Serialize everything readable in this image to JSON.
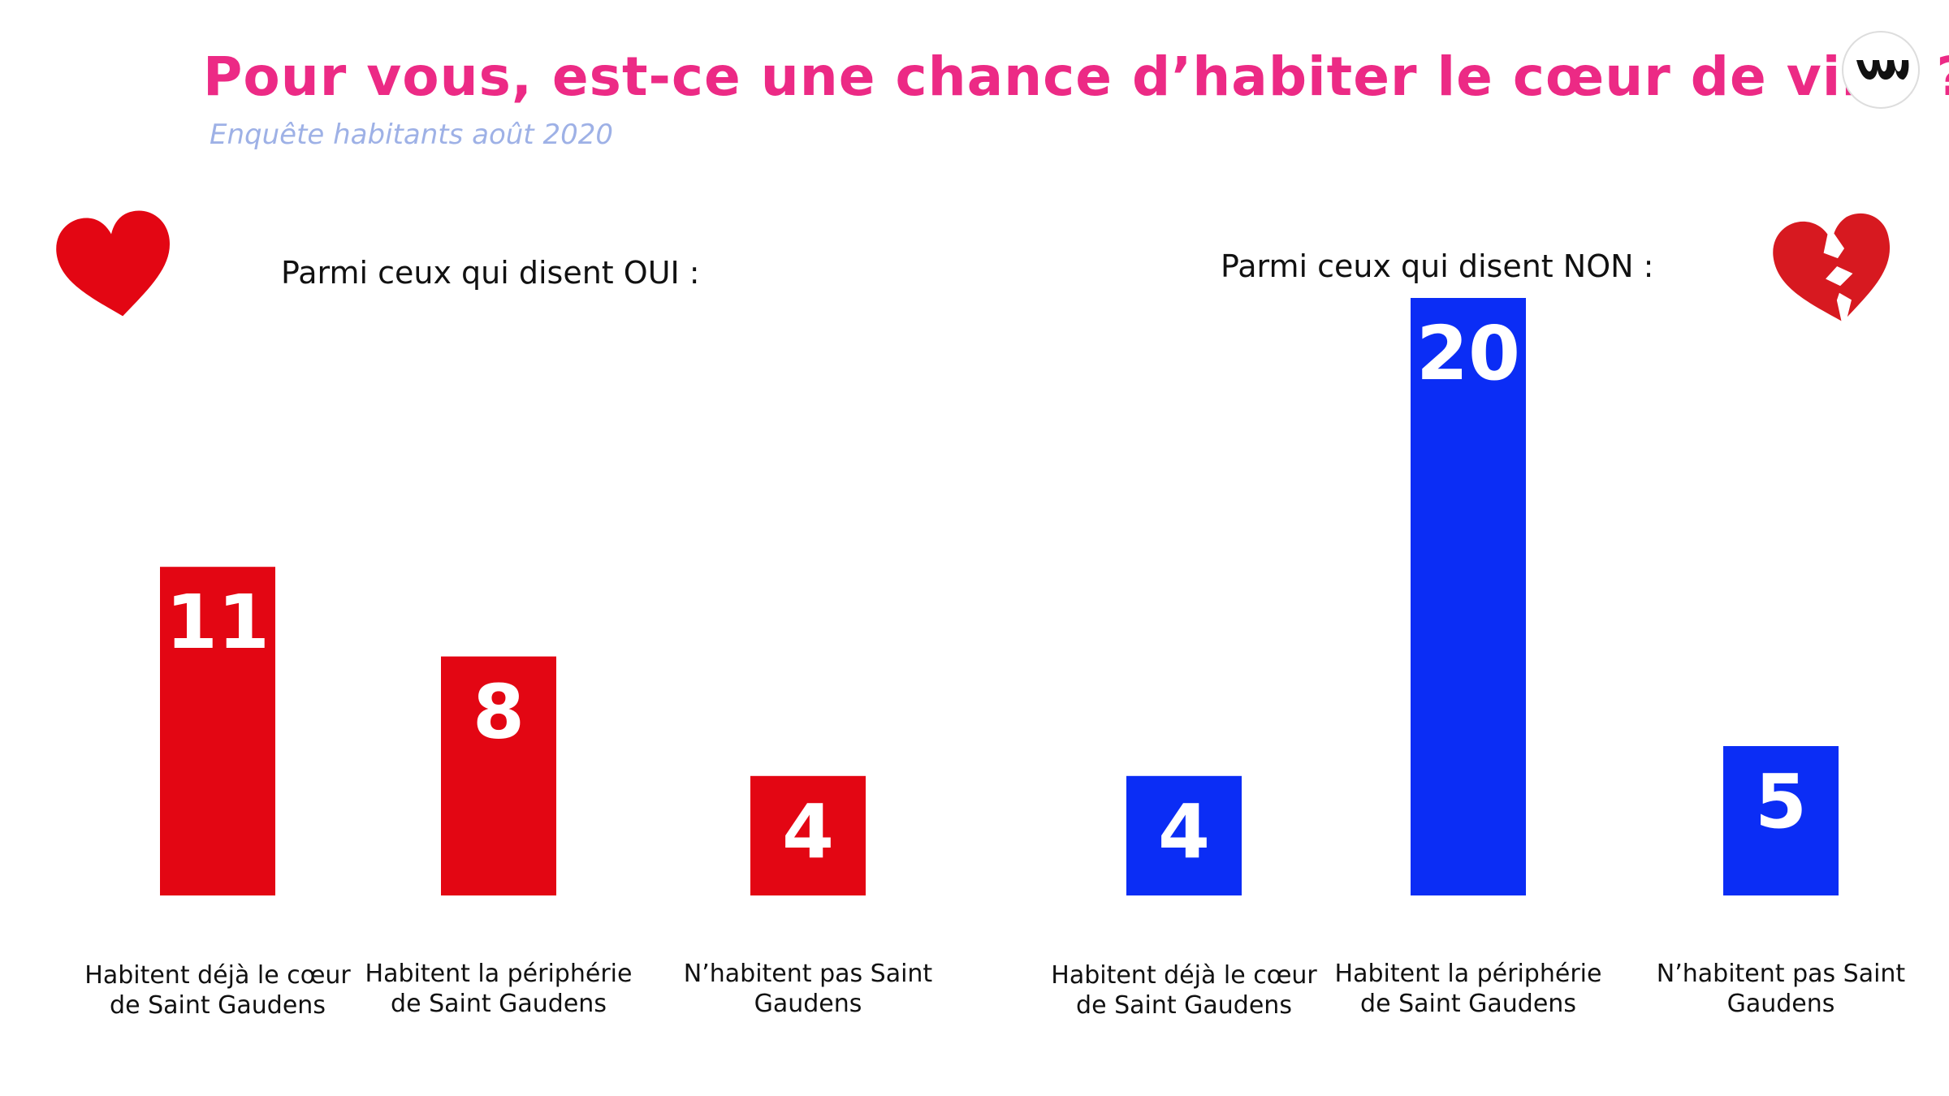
{
  "title": "Pour vous, est-ce une chance d’habiter le cœur de ville ?",
  "subtitle": "Enquête habitants août 2020",
  "icons": {
    "logo": "brand-logo-icon",
    "yes": "heart-icon",
    "no": "broken-heart-icon"
  },
  "colors": {
    "title": "#ec2a85",
    "subtitle": "#9eb1e6",
    "oui": "#e30613",
    "non": "#0b2df5"
  },
  "chart_data": [
    {
      "type": "bar",
      "title": "Parmi ceux qui disent OUI :",
      "categories": [
        "Habitent déjà le cœur de Saint Gaudens",
        "Habitent la périphérie de Saint Gaudens",
        "N’habitent pas Saint Gaudens"
      ],
      "values": [
        11,
        8,
        4
      ],
      "color": "#e30613",
      "data_labels": true,
      "grid": false,
      "ylim": [
        0,
        20
      ]
    },
    {
      "type": "bar",
      "title": "Parmi ceux qui disent NON :",
      "categories": [
        "Habitent déjà le cœur de Saint Gaudens",
        "Habitent la périphérie de Saint Gaudens",
        "N’habitent pas Saint Gaudens"
      ],
      "values": [
        4,
        20,
        5
      ],
      "color": "#0b2df5",
      "data_labels": true,
      "grid": false,
      "ylim": [
        0,
        20
      ]
    }
  ]
}
